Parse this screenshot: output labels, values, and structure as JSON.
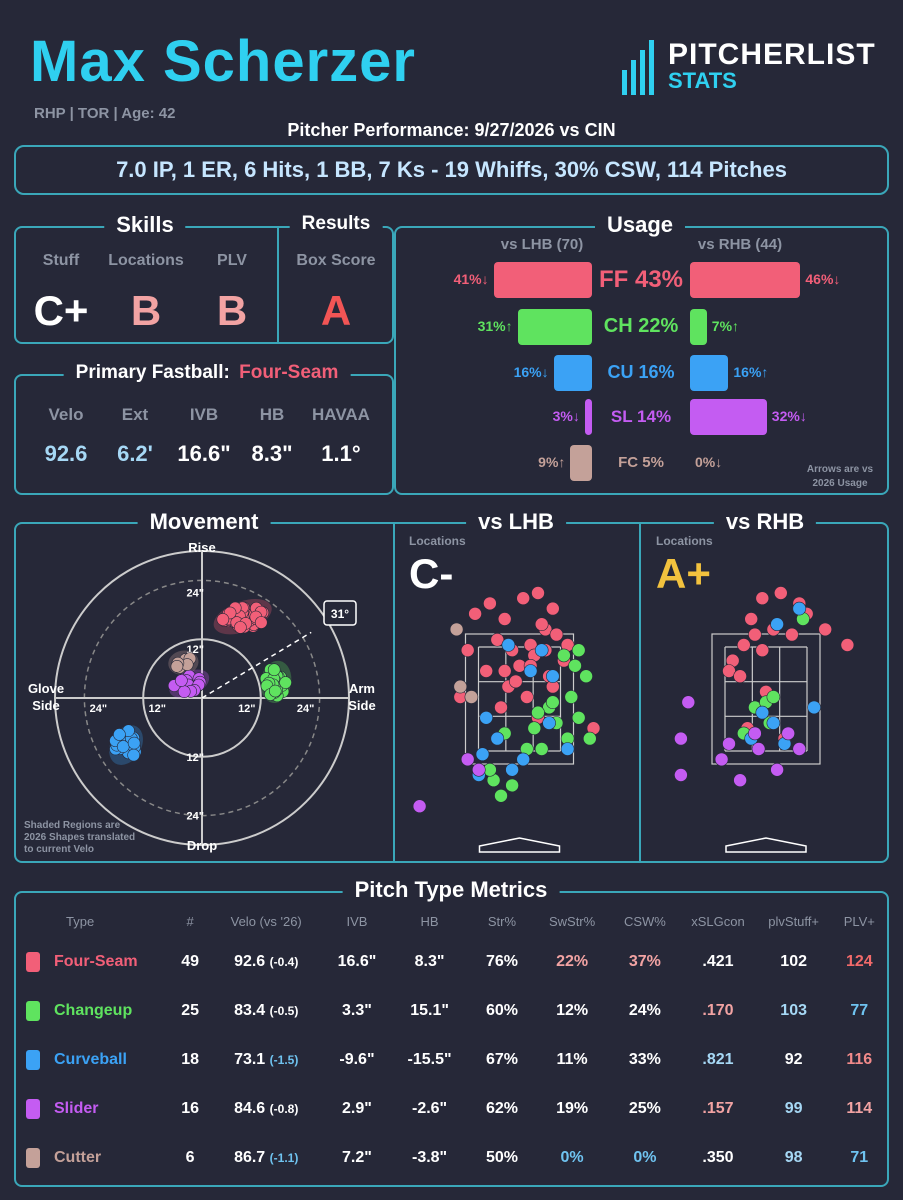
{
  "header": {
    "name": "Max Scherzer",
    "subtitle": "RHP | TOR | Age: 42",
    "performance": "Pitcher Performance: 9/27/2026 vs CIN",
    "summary": "7.0 IP, 1 ER, 6 Hits, 1 BB, 7 Ks - 19 Whiffs, 30% CSW, 114 Pitches",
    "logo_top": "PITCHERLIST",
    "logo_bottom": "STATS"
  },
  "colors": {
    "four_seam": "#f25f78",
    "changeup": "#5fe35f",
    "curveball": "#3ba2f5",
    "slider": "#c45cf2",
    "cutter": "#c4a199",
    "accent": "#3aa7b9",
    "grade_b": "#f2a3a3",
    "grade_a": "#f25555",
    "grade_aplus": "#f2c23e"
  },
  "skills": {
    "title": "Skills",
    "labels": [
      "Stuff",
      "Locations",
      "PLV"
    ],
    "grades": [
      "C+",
      "B",
      "B"
    ]
  },
  "results": {
    "title": "Results",
    "label": "Box Score",
    "grade": "A"
  },
  "fastball": {
    "title_prefix": "Primary Fastball:",
    "title_pitch": "Four-Seam",
    "labels": [
      "Velo",
      "Ext",
      "IVB",
      "HB",
      "HAVAA"
    ],
    "values": [
      "92.6",
      "6.2'",
      "16.6\"",
      "8.3\"",
      "1.1°"
    ]
  },
  "usage": {
    "title": "Usage",
    "lhb_label": "vs LHB (70)",
    "rhb_label": "vs RHB (44)",
    "note_line1": "Arrows are vs",
    "note_line2": "2026 Usage",
    "rows": [
      {
        "name": "FF 43%",
        "lhb": 41,
        "lhb_label": "41%↓",
        "rhb": 46,
        "rhb_label": "46%↓",
        "color": "#f25f78"
      },
      {
        "name": "CH 22%",
        "lhb": 31,
        "lhb_label": "31%↑",
        "rhb": 7,
        "rhb_label": "7%↑",
        "color": "#5fe35f"
      },
      {
        "name": "CU 16%",
        "lhb": 16,
        "lhb_label": "16%↓",
        "rhb": 16,
        "rhb_label": "16%↑",
        "color": "#3ba2f5"
      },
      {
        "name": "SL 14%",
        "lhb": 3,
        "lhb_label": "3%↓",
        "rhb": 32,
        "rhb_label": "32%↓",
        "color": "#c45cf2"
      },
      {
        "name": "FC 5%",
        "lhb": 9,
        "lhb_label": "9%↑",
        "rhb": 0,
        "rhb_label": "0%↓",
        "color": "#c4a199"
      }
    ]
  },
  "movement": {
    "title": "Movement",
    "rise": "Rise",
    "drop": "Drop",
    "glove1": "Glove",
    "glove2": "Side",
    "arm1": "Arm",
    "arm2": "Side",
    "ring_labels": [
      "12\"",
      "24\""
    ],
    "arm_angle": "31°",
    "note": [
      "Shaded Regions are",
      "2026 Shapes translated",
      "to current Velo"
    ]
  },
  "locations": {
    "lhb_title": "vs LHB",
    "rhb_title": "vs RHB",
    "label": "Locations",
    "lhb_grade": "C-",
    "rhb_grade": "A+"
  },
  "metrics": {
    "title": "Pitch Type Metrics",
    "headers": [
      "Type",
      "#",
      "Velo (vs '26)",
      "IVB",
      "HB",
      "Str%",
      "SwStr%",
      "CSW%",
      "xSLGcon",
      "plvStuff+",
      "PLV+"
    ],
    "rows": [
      {
        "type": "Four-Seam",
        "color": "#f25f78",
        "n": "49",
        "velo": "92.6",
        "diff": "(-0.4)",
        "ivb": "16.6\"",
        "hb": "8.3\"",
        "str": "76%",
        "swstr": "22%",
        "csw": "37%",
        "xslg": ".421",
        "stuff": "102",
        "plv": "124",
        "c_swstr": "#f2a3a3",
        "c_csw": "#f2a3a3",
        "c_xslg": "#ffffff",
        "c_stuff": "#ffffff",
        "c_plv": "#f26a6a",
        "c_diff": "#ffffff"
      },
      {
        "type": "Changeup",
        "color": "#5fe35f",
        "n": "25",
        "velo": "83.4",
        "diff": "(-0.5)",
        "ivb": "3.3\"",
        "hb": "15.1\"",
        "str": "60%",
        "swstr": "12%",
        "csw": "24%",
        "xslg": ".170",
        "stuff": "103",
        "plv": "77",
        "c_swstr": "#ffffff",
        "c_csw": "#ffffff",
        "c_xslg": "#f2a3a3",
        "c_stuff": "#a6d8f5",
        "c_plv": "#6fc3f0",
        "c_diff": "#ffffff"
      },
      {
        "type": "Curveball",
        "color": "#3ba2f5",
        "n": "18",
        "velo": "73.1",
        "diff": "(-1.5)",
        "ivb": "-9.6\"",
        "hb": "-15.5\"",
        "str": "67%",
        "swstr": "11%",
        "csw": "33%",
        "xslg": ".821",
        "stuff": "92",
        "plv": "116",
        "c_swstr": "#ffffff",
        "c_csw": "#ffffff",
        "c_xslg": "#a6d8f5",
        "c_stuff": "#ffffff",
        "c_plv": "#f28a8a",
        "c_diff": "#6fc3f0"
      },
      {
        "type": "Slider",
        "color": "#c45cf2",
        "n": "16",
        "velo": "84.6",
        "diff": "(-0.8)",
        "ivb": "2.9\"",
        "hb": "-2.6\"",
        "str": "62%",
        "swstr": "19%",
        "csw": "25%",
        "xslg": ".157",
        "stuff": "99",
        "plv": "114",
        "c_swstr": "#ffffff",
        "c_csw": "#ffffff",
        "c_xslg": "#f2a3a3",
        "c_stuff": "#a6d8f5",
        "c_plv": "#f2a3a3",
        "c_diff": "#ffffff"
      },
      {
        "type": "Cutter",
        "color": "#c4a199",
        "n": "6",
        "velo": "86.7",
        "diff": "(-1.1)",
        "ivb": "7.2\"",
        "hb": "-3.8\"",
        "str": "50%",
        "swstr": "0%",
        "csw": "0%",
        "xslg": ".350",
        "stuff": "98",
        "plv": "71",
        "c_swstr": "#6fc3f0",
        "c_csw": "#6fc3f0",
        "c_xslg": "#ffffff",
        "c_stuff": "#a6d8f5",
        "c_plv": "#6fc3f0",
        "c_diff": "#6fc3f0"
      }
    ]
  },
  "chart_data": [
    {
      "type": "bar",
      "categories": [
        "FF",
        "CH",
        "CU",
        "SL",
        "FC"
      ],
      "series": [
        {
          "name": "vs LHB (70)",
          "values": [
            41,
            31,
            16,
            3,
            9
          ]
        },
        {
          "name": "vs RHB (44)",
          "values": [
            46,
            7,
            16,
            32,
            0
          ]
        }
      ],
      "title": "Usage"
    },
    {
      "type": "scatter",
      "title": "Movement",
      "xlim": [
        -30,
        30
      ],
      "ylim": [
        -30,
        30
      ],
      "series": [
        {
          "name": "Four-Seam",
          "x": [
            8.3
          ],
          "y": [
            16.6
          ]
        },
        {
          "name": "Changeup",
          "x": [
            15.1
          ],
          "y": [
            3.3
          ]
        },
        {
          "name": "Curveball",
          "x": [
            -15.5
          ],
          "y": [
            -9.6
          ]
        },
        {
          "name": "Slider",
          "x": [
            -2.6
          ],
          "y": [
            2.9
          ]
        },
        {
          "name": "Cutter",
          "x": [
            -3.8
          ],
          "y": [
            7.2
          ]
        }
      ]
    },
    {
      "type": "scatter",
      "title": "vs LHB",
      "xlim": [
        -2.5,
        2.5
      ],
      "ylim": [
        0,
        5
      ],
      "series": [
        {
          "name": "Four-Seam",
          "x": [
            -1.2,
            -0.8,
            -0.4,
            0.1,
            0.5,
            0.7,
            0.9,
            -0.6,
            0.3,
            -0.2,
            0.6,
            0.0,
            -0.9,
            0.4,
            -0.3,
            0.8,
            1.0,
            -1.4,
            0.2,
            -0.5,
            0.9,
            -0.1,
            0.5,
            1.2,
            2.0,
            -1.6,
            0.3,
            0.7,
            -0.4,
            1.3
          ],
          "y": [
            3.6,
            3.8,
            3.5,
            3.9,
            4.0,
            3.3,
            3.7,
            3.1,
            3.0,
            2.9,
            3.4,
            2.6,
            2.5,
            2.8,
            2.2,
            2.4,
            3.2,
            2.9,
            2.0,
            1.8,
            2.2,
            2.3,
            1.6,
            2.7,
            1.4,
            2.0,
            2.6,
            2.9,
            2.5,
            3.0
          ]
        },
        {
          "name": "Changeup",
          "x": [
            1.2,
            1.5,
            1.8,
            1.4,
            1.6,
            0.8,
            1.0,
            1.3,
            0.5,
            0.6,
            1.9,
            -0.4,
            0.2,
            -0.7,
            -0.5,
            1.6,
            0.9,
            0.4,
            -0.8,
            -0.2
          ],
          "y": [
            2.8,
            2.6,
            2.4,
            2.0,
            1.6,
            1.8,
            1.5,
            1.2,
            1.7,
            1.0,
            1.2,
            1.3,
            1.0,
            0.4,
            0.1,
            2.9,
            1.9,
            1.4,
            0.6,
            0.3
          ]
        },
        {
          "name": "Curveball",
          "x": [
            -0.3,
            0.3,
            0.9,
            -0.9,
            -0.6,
            0.1,
            -1.4,
            -1.1,
            0.6,
            1.3,
            -0.2,
            0.8,
            -1.0
          ],
          "y": [
            3.0,
            2.5,
            2.4,
            1.6,
            1.2,
            0.8,
            0.8,
            0.5,
            2.9,
            1.0,
            0.6,
            1.5,
            0.9
          ]
        },
        {
          "name": "Slider",
          "x": [
            -2.7,
            -1.4,
            -1.1
          ],
          "y": [
            -0.1,
            0.8,
            0.6
          ]
        },
        {
          "name": "Cutter",
          "x": [
            -1.7,
            -1.6,
            -1.3
          ],
          "y": [
            3.3,
            2.2,
            2.0
          ]
        }
      ]
    },
    {
      "type": "scatter",
      "title": "vs RHB",
      "xlim": [
        -2.5,
        2.5
      ],
      "ylim": [
        0,
        5
      ],
      "series": [
        {
          "name": "Four-Seam",
          "x": [
            -0.1,
            0.4,
            0.9,
            1.1,
            0.7,
            0.2,
            -0.3,
            -0.6,
            -0.9,
            -1.0,
            -0.4,
            0.3,
            -0.7,
            1.6,
            2.2,
            -0.1,
            0.5,
            -0.5,
            0.0
          ],
          "y": [
            3.9,
            4.0,
            3.8,
            3.6,
            3.2,
            3.3,
            3.2,
            3.0,
            2.7,
            2.5,
            3.5,
            3.4,
            2.4,
            3.3,
            3.0,
            2.9,
            1.2,
            1.4,
            2.1
          ]
        },
        {
          "name": "Changeup",
          "x": [
            1.0,
            -0.3,
            0.1,
            -0.4,
            0.0,
            -0.6,
            0.2
          ],
          "y": [
            3.5,
            1.8,
            1.5,
            1.2,
            1.9,
            1.3,
            2.0
          ]
        },
        {
          "name": "Curveball",
          "x": [
            0.9,
            1.3,
            -0.1,
            0.2,
            0.5,
            -0.4,
            0.3
          ],
          "y": [
            3.7,
            1.8,
            1.7,
            1.5,
            1.1,
            1.2,
            3.4
          ]
        },
        {
          "name": "Slider",
          "x": [
            -2.1,
            0.6,
            0.9,
            -0.7,
            -2.3,
            -2.3,
            0.3,
            -0.2,
            -1.2,
            -1.0,
            -0.3
          ],
          "y": [
            1.9,
            1.3,
            1.0,
            0.4,
            1.2,
            0.5,
            0.6,
            1.0,
            0.8,
            1.1,
            1.3
          ]
        },
        {
          "name": "Cutter",
          "x": [],
          "y": []
        }
      ]
    }
  ]
}
